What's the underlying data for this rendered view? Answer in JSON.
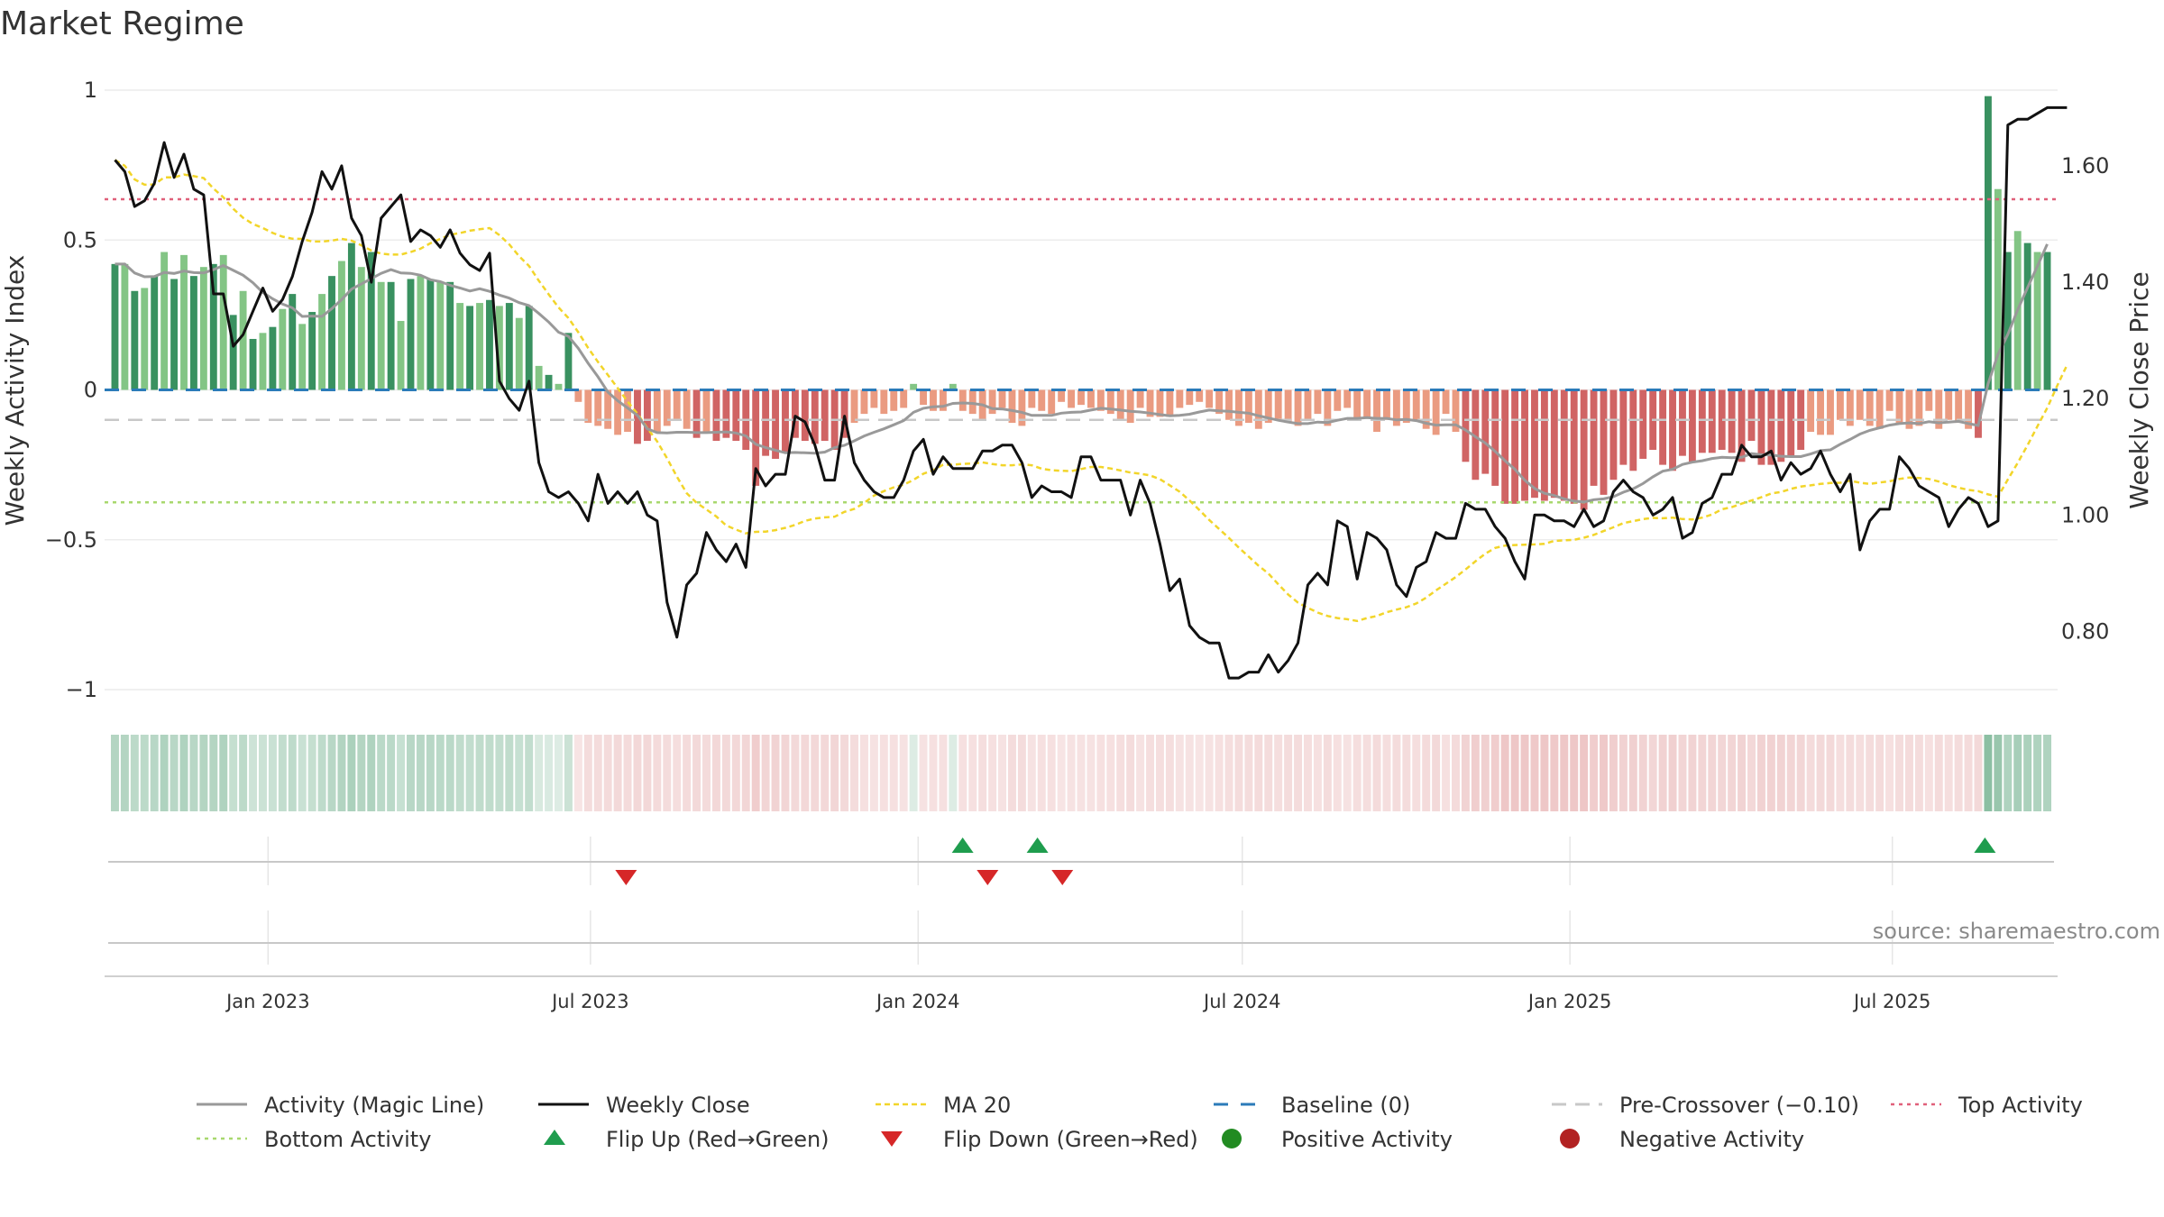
{
  "title": "Market Regime",
  "source": "source: sharemaestro.com",
  "chart_data": {
    "type": "bar",
    "title": "Market Regime",
    "y_left_label": "Weekly Activity Index",
    "y_right_label": "Weekly Close Price",
    "y_left_ticks": [
      "1",
      "0.5",
      "0",
      "−0.5",
      "−1"
    ],
    "y_left_range": [
      -1,
      1
    ],
    "y_right_ticks": [
      "1.60",
      "1.40",
      "1.20",
      "1.00",
      "0.80"
    ],
    "y_right_range": [
      0.7,
      1.73
    ],
    "x_ticks": [
      "Jan 2023",
      "Jul 2023",
      "Jan 2024",
      "Jul 2024",
      "Jan 2025",
      "Jul 2025"
    ],
    "x_range": [
      "2022-10-07",
      "2025-09-26"
    ],
    "top_activity": 0.636,
    "bottom_activity": -0.375,
    "pre_crossover": -0.1,
    "baseline": 0,
    "colors": {
      "positive_dark": "#2e8b57",
      "positive_light": "#7cc27e",
      "negative_dark": "#cd5c5c",
      "negative_light": "#e9967a",
      "weekly_close": "#111111",
      "magic_line": "#999999",
      "ma20": "#f2d52a",
      "top": "#e0607a",
      "bottom": "#a8d86e",
      "baseline": "#2b7bb9",
      "pre_crossover": "#c8c8c8",
      "flip_up": "#1f9d4e",
      "flip_down": "#d62728"
    },
    "activity": [
      0.42,
      0.42,
      0.33,
      0.34,
      0.38,
      0.46,
      0.37,
      0.45,
      0.38,
      0.41,
      0.42,
      0.45,
      0.25,
      0.33,
      0.17,
      0.19,
      0.21,
      0.27,
      0.32,
      0.22,
      0.26,
      0.32,
      0.38,
      0.43,
      0.49,
      0.41,
      0.46,
      0.36,
      0.36,
      0.23,
      0.37,
      0.38,
      0.37,
      0.36,
      0.36,
      0.29,
      0.28,
      0.29,
      0.3,
      0.28,
      0.29,
      0.24,
      0.28,
      0.08,
      0.05,
      0.02,
      0.19,
      -0.04,
      -0.11,
      -0.12,
      -0.13,
      -0.15,
      -0.14,
      -0.18,
      -0.17,
      -0.14,
      -0.12,
      -0.1,
      -0.13,
      -0.16,
      -0.14,
      -0.17,
      -0.16,
      -0.17,
      -0.2,
      -0.32,
      -0.22,
      -0.23,
      -0.21,
      -0.16,
      -0.17,
      -0.18,
      -0.17,
      -0.2,
      -0.16,
      -0.11,
      -0.08,
      -0.06,
      -0.08,
      -0.07,
      -0.06,
      0.02,
      -0.05,
      -0.07,
      -0.07,
      0.02,
      -0.07,
      -0.08,
      -0.1,
      -0.08,
      -0.06,
      -0.11,
      -0.12,
      -0.06,
      -0.07,
      -0.08,
      -0.04,
      -0.06,
      -0.05,
      -0.06,
      -0.07,
      -0.08,
      -0.1,
      -0.11,
      -0.06,
      -0.09,
      -0.09,
      -0.09,
      -0.06,
      -0.05,
      -0.04,
      -0.06,
      -0.08,
      -0.1,
      -0.12,
      -0.11,
      -0.13,
      -0.11,
      -0.1,
      -0.11,
      -0.12,
      -0.1,
      -0.08,
      -0.12,
      -0.07,
      -0.06,
      -0.1,
      -0.09,
      -0.14,
      -0.1,
      -0.12,
      -0.11,
      -0.1,
      -0.13,
      -0.15,
      -0.08,
      -0.14,
      -0.24,
      -0.3,
      -0.28,
      -0.32,
      -0.38,
      -0.38,
      -0.37,
      -0.36,
      -0.37,
      -0.36,
      -0.37,
      -0.38,
      -0.4,
      -0.32,
      -0.35,
      -0.3,
      -0.25,
      -0.27,
      -0.23,
      -0.2,
      -0.25,
      -0.27,
      -0.22,
      -0.24,
      -0.21,
      -0.21,
      -0.2,
      -0.21,
      -0.24,
      -0.17,
      -0.25,
      -0.25,
      -0.24,
      -0.22,
      -0.2,
      -0.14,
      -0.15,
      -0.15,
      -0.1,
      -0.12,
      -0.1,
      -0.12,
      -0.13,
      -0.07,
      -0.11,
      -0.13,
      -0.12,
      -0.07,
      -0.13,
      -0.1,
      -0.11,
      -0.13,
      -0.16,
      0.98,
      0.67,
      0.46,
      0.53,
      0.49,
      0.46,
      0.46
    ],
    "weekly_close": [
      1.61,
      1.59,
      1.53,
      1.54,
      1.57,
      1.64,
      1.58,
      1.62,
      1.56,
      1.55,
      1.38,
      1.38,
      1.29,
      1.31,
      1.35,
      1.39,
      1.35,
      1.37,
      1.41,
      1.47,
      1.52,
      1.59,
      1.56,
      1.6,
      1.51,
      1.48,
      1.4,
      1.51,
      1.53,
      1.55,
      1.47,
      1.49,
      1.48,
      1.46,
      1.49,
      1.45,
      1.43,
      1.42,
      1.45,
      1.23,
      1.2,
      1.18,
      1.23,
      1.09,
      1.04,
      1.03,
      1.04,
      1.02,
      0.99,
      1.07,
      1.02,
      1.04,
      1.02,
      1.04,
      1.0,
      0.99,
      0.85,
      0.79,
      0.88,
      0.9,
      0.97,
      0.94,
      0.92,
      0.95,
      0.91,
      1.08,
      1.05,
      1.07,
      1.07,
      1.17,
      1.16,
      1.12,
      1.06,
      1.06,
      1.17,
      1.09,
      1.06,
      1.04,
      1.03,
      1.03,
      1.06,
      1.11,
      1.13,
      1.07,
      1.1,
      1.08,
      1.08,
      1.08,
      1.11,
      1.11,
      1.12,
      1.12,
      1.09,
      1.03,
      1.05,
      1.04,
      1.04,
      1.03,
      1.1,
      1.1,
      1.06,
      1.06,
      1.06,
      1.0,
      1.06,
      1.02,
      0.95,
      0.87,
      0.89,
      0.81,
      0.79,
      0.78,
      0.78,
      0.72,
      0.72,
      0.73,
      0.73,
      0.76,
      0.73,
      0.75,
      0.78,
      0.88,
      0.9,
      0.88,
      0.99,
      0.98,
      0.89,
      0.97,
      0.96,
      0.94,
      0.88,
      0.86,
      0.91,
      0.92,
      0.97,
      0.96,
      0.96,
      1.02,
      1.01,
      1.01,
      0.98,
      0.96,
      0.92,
      0.89,
      1.0,
      1.0,
      0.99,
      0.99,
      0.98,
      1.01,
      0.98,
      0.99,
      1.04,
      1.06,
      1.04,
      1.03,
      1.0,
      1.01,
      1.03,
      0.96,
      0.97,
      1.02,
      1.03,
      1.07,
      1.07,
      1.12,
      1.1,
      1.1,
      1.11,
      1.06,
      1.09,
      1.07,
      1.08,
      1.11,
      1.07,
      1.04,
      1.07,
      0.94,
      0.99,
      1.01,
      1.01,
      1.1,
      1.08,
      1.05,
      1.04,
      1.03,
      0.98,
      1.01,
      1.03,
      1.02,
      0.98,
      0.99,
      1.67,
      1.68,
      1.68,
      1.69,
      1.7,
      1.7,
      1.7
    ],
    "flip_up_dates": [
      "2024-01-26",
      "2024-03-08",
      "2025-08-22"
    ],
    "flip_down_dates": [
      "2023-07-21",
      "2024-02-09",
      "2024-03-22"
    ],
    "legend": [
      "Activity (Magic Line)",
      "Weekly Close",
      "MA 20",
      "Baseline (0)",
      "Pre-Crossover (−0.10)",
      "Top Activity",
      "Bottom Activity",
      "Flip Up (Red→Green)",
      "Flip Down (Green→Red)",
      "Positive Activity",
      "Negative Activity"
    ]
  }
}
